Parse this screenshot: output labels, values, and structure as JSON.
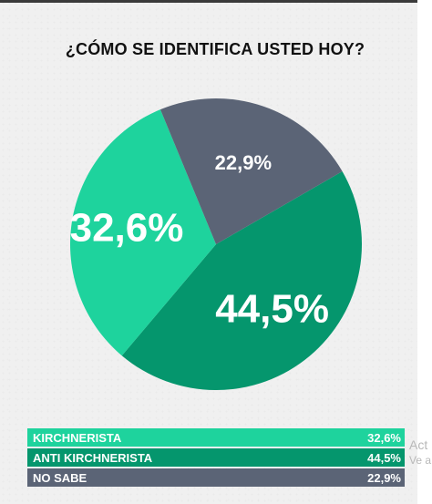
{
  "chart_data": {
    "type": "pie",
    "title": "¿CÓMO SE IDENTIFICA USTED HOY?",
    "slices": [
      {
        "label": "KIRCHNERISTA",
        "value": 32.6,
        "display": "32,6%",
        "color": "#1ed39d"
      },
      {
        "label": "ANTI KIRCHNERISTA",
        "value": 44.5,
        "display": "44,5%",
        "color": "#05966d"
      },
      {
        "label": "NO SABE",
        "value": 22.9,
        "display": "22,9%",
        "color": "#5b6476"
      }
    ],
    "start_angle_deg": -30,
    "order": [
      1,
      0,
      2
    ],
    "legend_placement": "bottom"
  },
  "watermark": {
    "line1": "Act",
    "line2": "Ve a"
  }
}
